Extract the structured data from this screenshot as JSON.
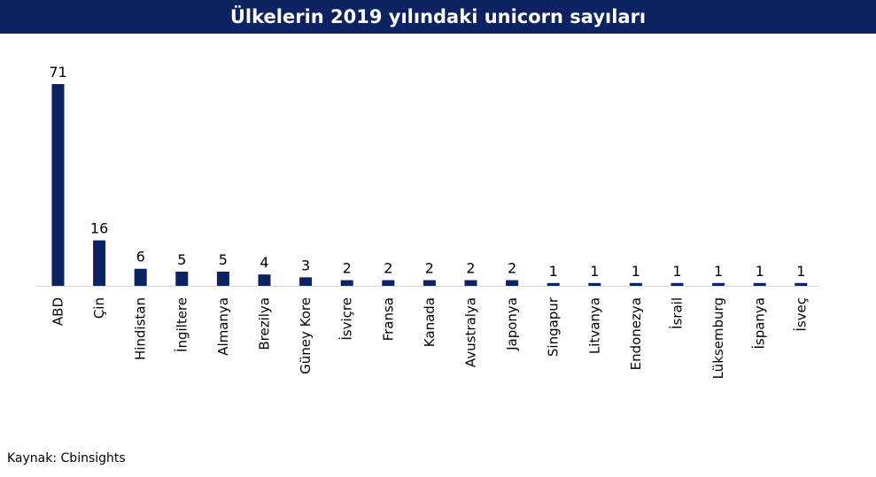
{
  "header": {
    "title": "Ülkelerin 2019 yılındaki unicorn sayıları"
  },
  "footer": {
    "source": "Kaynak: Cbinsights"
  },
  "colors": {
    "bar": "#0d2260",
    "header_bg": "#0d2260",
    "axis": "#d9d9d9"
  },
  "chart_data": {
    "type": "bar",
    "title": "Ülkelerin 2019 yılındaki unicorn sayıları",
    "xlabel": "",
    "ylabel": "",
    "ylim": [
      0,
      71
    ],
    "grid": false,
    "categories": [
      "ABD",
      "Çin",
      "Hindistan",
      "İngiltere",
      "Almanya",
      "Brezilya",
      "Güney Kore",
      "İsviçre",
      "Fransa",
      "Kanada",
      "Avustralya",
      "Japonya",
      "Singapur",
      "Litvanya",
      "Endonezya",
      "İsrail",
      "Lüksemburg",
      "İspanya",
      "İsveç"
    ],
    "values": [
      71,
      16,
      6,
      5,
      5,
      4,
      3,
      2,
      2,
      2,
      2,
      2,
      1,
      1,
      1,
      1,
      1,
      1,
      1
    ]
  }
}
